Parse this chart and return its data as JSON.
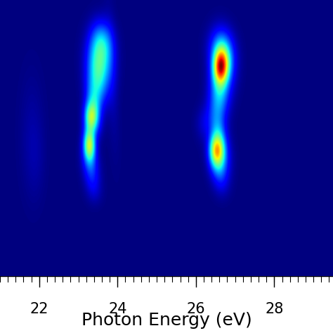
{
  "xlim": [
    21.0,
    29.5
  ],
  "xlabel": "Photon Energy (eV)",
  "xlabel_fontsize": 18,
  "tick_fontsize": 15,
  "xticks": [
    22,
    24,
    26,
    28
  ],
  "image_aspect": [
    0.0,
    0.17,
    1.0,
    0.83
  ],
  "axis_aspect": [
    0.0,
    0.0,
    1.0,
    0.17
  ],
  "nx": 600,
  "ny": 420
}
